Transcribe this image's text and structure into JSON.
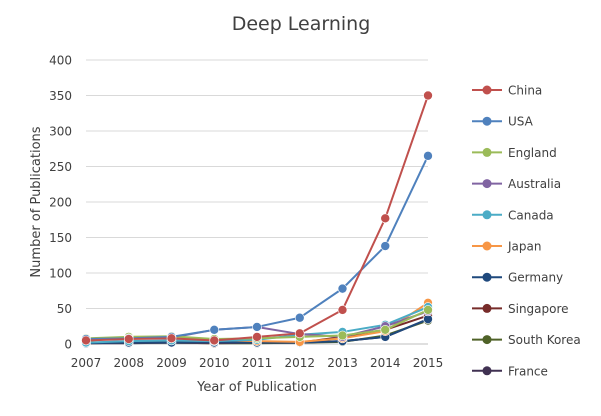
{
  "chart_data": {
    "type": "line",
    "title": "Deep Learning",
    "xlabel": "Year of Publication",
    "ylabel": "Number of Publications",
    "x": [
      2007,
      2008,
      2009,
      2010,
      2011,
      2012,
      2013,
      2014,
      2015
    ],
    "ylim": [
      0,
      400
    ],
    "yticks": [
      0,
      50,
      100,
      150,
      200,
      250,
      300,
      350,
      400
    ],
    "grid": "horizontal",
    "legend_position": "right",
    "series": [
      {
        "name": "China",
        "color": "#c0504d",
        "values": [
          5,
          7,
          8,
          5,
          10,
          15,
          48,
          177,
          350
        ]
      },
      {
        "name": "USA",
        "color": "#4f81bd",
        "values": [
          7,
          8,
          10,
          20,
          24,
          37,
          78,
          138,
          265
        ]
      },
      {
        "name": "England",
        "color": "#9bbb59",
        "values": [
          8,
          10,
          11,
          7,
          8,
          10,
          12,
          20,
          48
        ]
      },
      {
        "name": "Australia",
        "color": "#8064a2",
        "values": [
          6,
          8,
          9,
          20,
          24,
          14,
          10,
          25,
          46
        ]
      },
      {
        "name": "Canada",
        "color": "#4bacc6",
        "values": [
          2,
          4,
          5,
          4,
          6,
          13,
          17,
          27,
          52
        ]
      },
      {
        "name": "Japan",
        "color": "#f79646",
        "values": [
          4,
          10,
          10,
          6,
          4,
          3,
          8,
          18,
          58
        ]
      },
      {
        "name": "Germany",
        "color": "#1f497d",
        "values": [
          1,
          2,
          2,
          2,
          2,
          2,
          4,
          10,
          35
        ]
      },
      {
        "name": "Singapore",
        "color": "#772c2a",
        "values": [
          1,
          2,
          2,
          1,
          2,
          2,
          10,
          20,
          40
        ]
      },
      {
        "name": "South Korea",
        "color": "#4f6228",
        "values": [
          1,
          2,
          2,
          1,
          1,
          2,
          3,
          12,
          33
        ]
      },
      {
        "name": "France",
        "color": "#403152",
        "values": [
          1,
          1,
          2,
          2,
          2,
          2,
          4,
          10,
          35
        ]
      }
    ]
  }
}
